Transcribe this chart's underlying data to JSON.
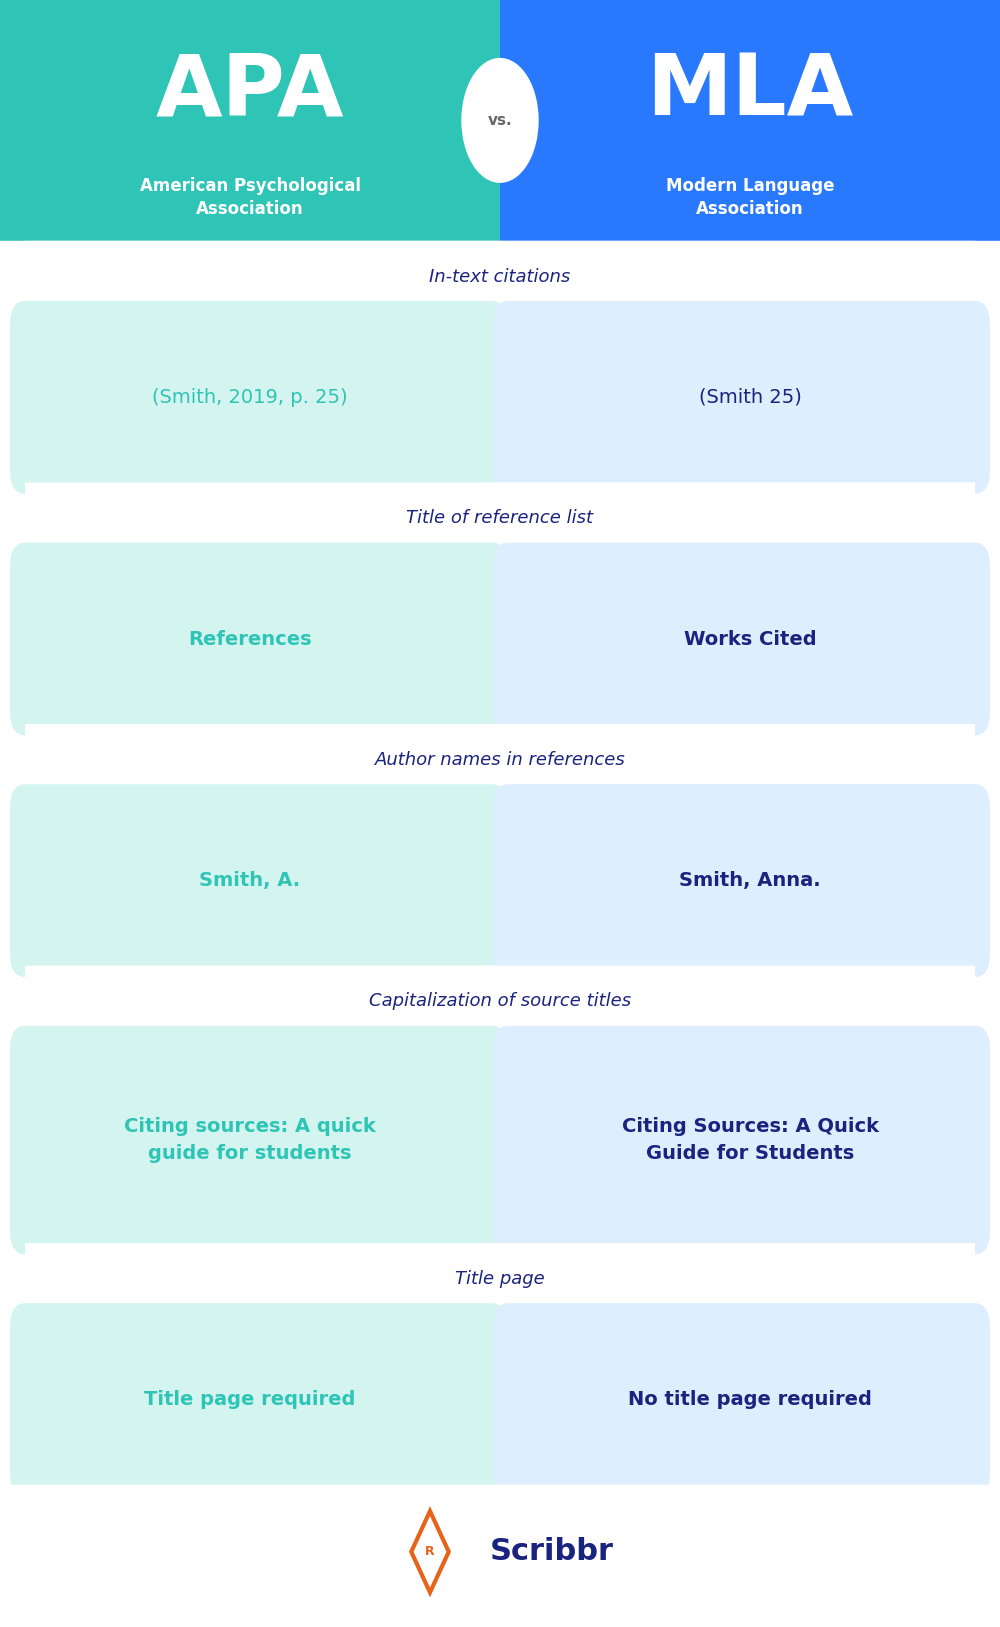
{
  "apa_color": "#2EC4B6",
  "mla_color": "#2979FF",
  "apa_light": "#D4F5EF",
  "mla_light": "#DDEEFF",
  "header_text_color": "#FFFFFF",
  "label_color": "#1a237e",
  "apa_value_color": "#2EC4B6",
  "mla_value_color": "#1a237e",
  "section_label_color": "#1a237e",
  "bg_color": "#FFFFFF",
  "footer_bg": "#FFFFFF",
  "apa_title": "APA",
  "mla_title": "MLA",
  "apa_subtitle": "American Psychological\nAssociation",
  "mla_subtitle": "Modern Language\nAssociation",
  "vs_text": "vs.",
  "sections": [
    {
      "label": "In-text citations",
      "apa_value": "(Smith, 2019, p. 25)",
      "mla_value": "(Smith 25)",
      "apa_bold": false,
      "mla_bold": false
    },
    {
      "label": "Title of reference list",
      "apa_value": "References",
      "mla_value": "Works Cited",
      "apa_bold": true,
      "mla_bold": true
    },
    {
      "label": "Author names in references",
      "apa_value": "Smith, A.",
      "mla_value": "Smith, Anna.",
      "apa_bold": true,
      "mla_bold": true
    },
    {
      "label": "Capitalization of source titles",
      "apa_value": "Citing sources: A quick\nguide for students",
      "mla_value": "Citing Sources: A Quick\nGuide for Students",
      "apa_bold": true,
      "mla_bold": true
    },
    {
      "label": "Title page",
      "apa_value": "Title page required",
      "mla_value": "No title page required",
      "apa_bold": true,
      "mla_bold": true
    }
  ],
  "footer_logo_text": "Scribbr",
  "footer_logo_color": "#1a237e",
  "footer_icon_color": "#E8631A"
}
